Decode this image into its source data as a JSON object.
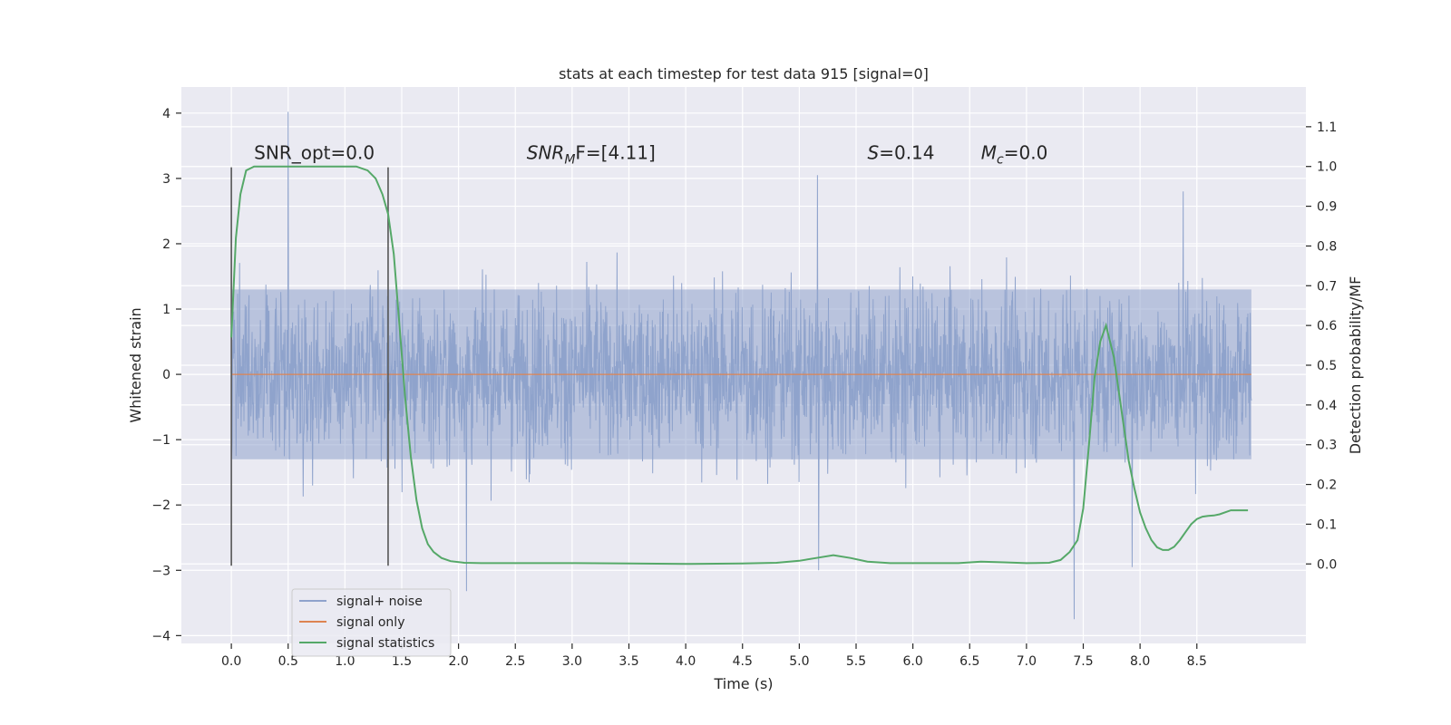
{
  "chart_data": {
    "type": "line",
    "title": "stats at each timestep for test data 915 [signal=0]",
    "xlabel": "Time (s)",
    "ylabel": "Whitened strain",
    "ylabel_right": "Detection probability/MF",
    "xlim": [
      -0.44,
      9.46
    ],
    "ylim": [
      -4.12,
      4.4
    ],
    "ylim_right": [
      -0.2,
      1.2
    ],
    "x_ticks": [
      0.0,
      0.5,
      1.0,
      1.5,
      2.0,
      2.5,
      3.0,
      3.5,
      4.0,
      4.5,
      5.0,
      5.5,
      6.0,
      6.5,
      7.0,
      7.5,
      8.0,
      8.5
    ],
    "x_tick_labels": [
      "0.0",
      "0.5",
      "1.0",
      "1.5",
      "2.0",
      "2.5",
      "3.0",
      "3.5",
      "4.0",
      "4.5",
      "5.0",
      "5.5",
      "6.0",
      "6.5",
      "7.0",
      "7.5",
      "8.0",
      "8.5"
    ],
    "y_ticks": [
      -4,
      -3,
      -2,
      -1,
      0,
      1,
      2,
      3,
      4
    ],
    "y_tick_labels": [
      "−4",
      "−3",
      "−2",
      "−1",
      "0",
      "1",
      "2",
      "3",
      "4"
    ],
    "y_right_ticks": [
      0.0,
      0.1,
      0.2,
      0.3,
      0.4,
      0.5,
      0.6,
      0.7,
      0.8,
      0.9,
      1.0,
      1.1
    ],
    "y_right_tick_labels": [
      "0.0",
      "0.1",
      "0.2",
      "0.3",
      "0.4",
      "0.5",
      "0.6",
      "0.7",
      "0.8",
      "0.9",
      "1.0",
      "1.1"
    ],
    "grid": true,
    "legend_position": "lower-left",
    "series": [
      {
        "name": "signal+ noise",
        "color": "#8fa3cc",
        "style": "dense noise trace",
        "x_range": [
          0.0,
          8.98
        ],
        "typical_envelope": [
          -1.3,
          1.3
        ],
        "peaks": [
          {
            "x": 0.5,
            "y": 4.02
          },
          {
            "x": 2.07,
            "y": -3.32
          },
          {
            "x": 5.16,
            "y": 3.05
          },
          {
            "x": 5.17,
            "y": -3.0
          },
          {
            "x": 7.42,
            "y": -3.75
          },
          {
            "x": 7.93,
            "y": -2.95
          },
          {
            "x": 8.38,
            "y": 2.8
          }
        ]
      },
      {
        "name": "signal only",
        "color": "#dd8452",
        "x": [
          0.0,
          8.98
        ],
        "y": [
          0.0,
          0.0
        ]
      },
      {
        "name": "signal statistics",
        "color": "#55a868",
        "axis": "right",
        "x": [
          0.0,
          0.04,
          0.08,
          0.13,
          0.2,
          0.3,
          0.5,
          0.8,
          1.0,
          1.1,
          1.2,
          1.27,
          1.33,
          1.38,
          1.43,
          1.48,
          1.53,
          1.58,
          1.63,
          1.68,
          1.73,
          1.78,
          1.85,
          1.93,
          2.05,
          2.2,
          2.5,
          3.0,
          3.5,
          4.0,
          4.5,
          4.8,
          5.0,
          5.15,
          5.3,
          5.45,
          5.6,
          5.8,
          6.0,
          6.4,
          6.6,
          6.8,
          7.0,
          7.2,
          7.3,
          7.38,
          7.45,
          7.5,
          7.55,
          7.6,
          7.65,
          7.7,
          7.77,
          7.85,
          7.9,
          7.95,
          8.0,
          8.05,
          8.1,
          8.15,
          8.2,
          8.25,
          8.3,
          8.35,
          8.4,
          8.45,
          8.5,
          8.55,
          8.6,
          8.65,
          8.7,
          8.8,
          8.9,
          8.95
        ],
        "y": [
          0.57,
          0.82,
          0.93,
          0.99,
          1.0,
          1.0,
          1.0,
          1.0,
          1.0,
          1.0,
          0.99,
          0.97,
          0.93,
          0.88,
          0.78,
          0.6,
          0.42,
          0.27,
          0.16,
          0.09,
          0.05,
          0.03,
          0.015,
          0.007,
          0.003,
          0.002,
          0.002,
          0.002,
          0.001,
          0.0,
          0.001,
          0.003,
          0.008,
          0.015,
          0.022,
          0.015,
          0.006,
          0.002,
          0.002,
          0.002,
          0.006,
          0.004,
          0.002,
          0.003,
          0.01,
          0.03,
          0.06,
          0.14,
          0.3,
          0.47,
          0.56,
          0.6,
          0.52,
          0.36,
          0.26,
          0.19,
          0.13,
          0.09,
          0.06,
          0.042,
          0.035,
          0.035,
          0.043,
          0.06,
          0.08,
          0.1,
          0.113,
          0.119,
          0.121,
          0.122,
          0.125,
          0.135,
          0.135,
          0.135
        ]
      }
    ],
    "vertical_markers": [
      {
        "x": 0.0,
        "y_range": [
          -2.93,
          3.17
        ]
      },
      {
        "x": 1.38,
        "y_range": [
          -2.93,
          3.17
        ]
      }
    ],
    "annotations": [
      {
        "x": 0.2,
        "y": 3.3,
        "text": "SNR_opt=0.0"
      },
      {
        "x": 2.6,
        "y": 3.3,
        "base": "SNR",
        "sub": "M",
        "suffix": "F=[4.11]"
      },
      {
        "x": 5.6,
        "y": 3.3,
        "base": "S",
        "suffix": "=0.14"
      },
      {
        "x": 6.6,
        "y": 3.3,
        "base": "M",
        "sub": "c",
        "suffix": "=0.0"
      }
    ],
    "colors": {
      "plot_background": "#eaeaf2",
      "grid": "#ffffff",
      "text": "#262626",
      "marker": "#555555"
    }
  }
}
